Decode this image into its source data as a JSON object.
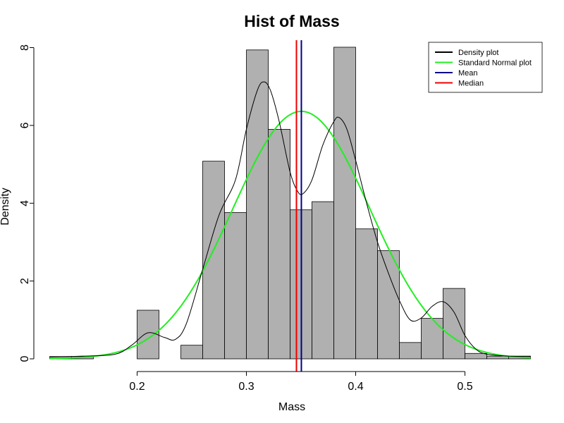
{
  "chart_data": {
    "type": "histogram",
    "title": "Hist of Mass",
    "xlabel": "Mass",
    "ylabel": "Density",
    "xlim": [
      0.11,
      0.57
    ],
    "ylim": [
      0,
      8.1
    ],
    "x_ticks": [
      0.2,
      0.3,
      0.4,
      0.5
    ],
    "x_tick_labels": [
      "0.2",
      "0.3",
      "0.4",
      "0.5"
    ],
    "y_ticks": [
      0,
      2,
      4,
      6,
      8
    ],
    "y_tick_labels": [
      "0",
      "2",
      "4",
      "6",
      "8"
    ],
    "bins": [
      {
        "x0": 0.12,
        "x1": 0.14,
        "density": 0.06
      },
      {
        "x0": 0.14,
        "x1": 0.16,
        "density": 0.06
      },
      {
        "x0": 0.16,
        "x1": 0.18,
        "density": 0.0
      },
      {
        "x0": 0.18,
        "x1": 0.2,
        "density": 0.0
      },
      {
        "x0": 0.2,
        "x1": 0.22,
        "density": 1.25
      },
      {
        "x0": 0.22,
        "x1": 0.24,
        "density": 0.0
      },
      {
        "x0": 0.24,
        "x1": 0.26,
        "density": 0.35
      },
      {
        "x0": 0.26,
        "x1": 0.28,
        "density": 5.08
      },
      {
        "x0": 0.28,
        "x1": 0.3,
        "density": 3.76
      },
      {
        "x0": 0.3,
        "x1": 0.32,
        "density": 7.94
      },
      {
        "x0": 0.32,
        "x1": 0.34,
        "density": 5.9
      },
      {
        "x0": 0.34,
        "x1": 0.36,
        "density": 3.83
      },
      {
        "x0": 0.36,
        "x1": 0.38,
        "density": 4.04
      },
      {
        "x0": 0.38,
        "x1": 0.4,
        "density": 8.01
      },
      {
        "x0": 0.4,
        "x1": 0.42,
        "density": 3.34
      },
      {
        "x0": 0.42,
        "x1": 0.44,
        "density": 2.78
      },
      {
        "x0": 0.44,
        "x1": 0.46,
        "density": 0.42
      },
      {
        "x0": 0.46,
        "x1": 0.48,
        "density": 1.04
      },
      {
        "x0": 0.48,
        "x1": 0.5,
        "density": 1.81
      },
      {
        "x0": 0.5,
        "x1": 0.52,
        "density": 0.14
      },
      {
        "x0": 0.52,
        "x1": 0.54,
        "density": 0.07
      },
      {
        "x0": 0.54,
        "x1": 0.56,
        "density": 0.07
      }
    ],
    "density_curve": {
      "name": "Density plot",
      "color": "#000000",
      "points": [
        [
          0.12,
          0.05
        ],
        [
          0.15,
          0.07
        ],
        [
          0.18,
          0.12
        ],
        [
          0.195,
          0.35
        ],
        [
          0.21,
          0.67
        ],
        [
          0.225,
          0.55
        ],
        [
          0.235,
          0.5
        ],
        [
          0.245,
          0.9
        ],
        [
          0.26,
          2.3
        ],
        [
          0.275,
          3.7
        ],
        [
          0.29,
          4.6
        ],
        [
          0.3,
          5.9
        ],
        [
          0.31,
          6.9
        ],
        [
          0.316,
          7.12
        ],
        [
          0.322,
          6.9
        ],
        [
          0.33,
          6.1
        ],
        [
          0.34,
          4.8
        ],
        [
          0.347,
          4.3
        ],
        [
          0.352,
          4.25
        ],
        [
          0.36,
          4.6
        ],
        [
          0.37,
          5.5
        ],
        [
          0.38,
          6.1
        ],
        [
          0.385,
          6.2
        ],
        [
          0.392,
          5.9
        ],
        [
          0.4,
          5.1
        ],
        [
          0.41,
          4.0
        ],
        [
          0.42,
          3.0
        ],
        [
          0.43,
          2.2
        ],
        [
          0.44,
          1.5
        ],
        [
          0.45,
          1.0
        ],
        [
          0.46,
          1.05
        ],
        [
          0.47,
          1.35
        ],
        [
          0.48,
          1.47
        ],
        [
          0.49,
          1.2
        ],
        [
          0.5,
          0.6
        ],
        [
          0.51,
          0.25
        ],
        [
          0.52,
          0.12
        ],
        [
          0.54,
          0.07
        ],
        [
          0.56,
          0.06
        ]
      ]
    },
    "normal_curve": {
      "name": "Standard Normal plot",
      "color": "#22ee22",
      "mean": 0.3503,
      "sd": 0.0627
    },
    "mean_line": {
      "name": "Mean",
      "value": 0.3503,
      "color": "#00008b"
    },
    "median_line": {
      "name": "Median",
      "value": 0.3458,
      "color": "#ee0000"
    },
    "legend": {
      "position": "top-right",
      "entries": [
        {
          "label": "Density plot",
          "color": "#000000"
        },
        {
          "label": "Standard Normal plot",
          "color": "#22ee22"
        },
        {
          "label": "Mean",
          "color": "#00008b"
        },
        {
          "label": "Median",
          "color": "#ee0000"
        }
      ]
    },
    "bar_fill": "#b0b0b0"
  }
}
